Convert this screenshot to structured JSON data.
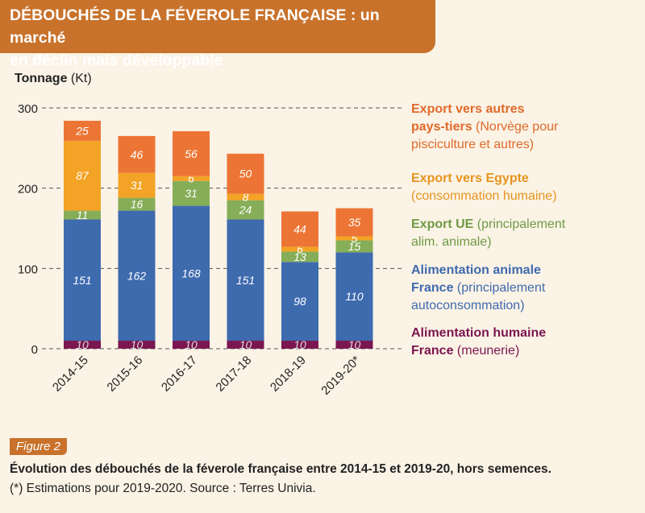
{
  "header": {
    "title_line1": "DÉBOUCHÉS DE LA FÉVEROLE FRANÇAISE : un marché",
    "title_line2": "en déclin mais développable"
  },
  "figure": {
    "tag": "Figure 2",
    "caption": "Évolution des débouchés de la féverole française entre 2014-15 et 2019-20, hors semences.",
    "note": "(*) Estimations pour 2019-2020. Source : Terres Univia."
  },
  "chart_data": {
    "type": "bar",
    "stacked": true,
    "ylabel_bold": "Tonnage",
    "ylabel_unit": " (Kt)",
    "ylim": [
      0,
      300
    ],
    "yticks": [
      "0",
      "100",
      "200",
      "300"
    ],
    "grid": "dashed horizontal",
    "legend_position": "right",
    "categories": [
      "2014-15",
      "2015-16",
      "2016-17",
      "2017-18",
      "2018-19",
      "2019-20*"
    ],
    "series": [
      {
        "key": "humaine",
        "color": "#7b1650",
        "label_color": "#dcdcdc",
        "values": [
          10,
          10,
          10,
          10,
          10,
          10
        ],
        "legend_bold": [
          "Alimentation humaine",
          "France"
        ],
        "legend_rest": [
          "",
          " (meunerie)"
        ]
      },
      {
        "key": "animale",
        "color": "#3e6aae",
        "label_color": "#ffffff",
        "values": [
          151,
          162,
          168,
          151,
          98,
          110
        ],
        "legend_bold": [
          "Alimentation animale",
          "France",
          ""
        ],
        "legend_rest": [
          "",
          " (principalement",
          "autoconsommation)"
        ]
      },
      {
        "key": "ue",
        "color": "#86ad57",
        "label_color": "#ffffff",
        "values": [
          11,
          16,
          31,
          24,
          13,
          15
        ],
        "legend_bold": [
          "Export UE",
          ""
        ],
        "legend_rest": [
          " (principalement",
          "alim. animale)"
        ]
      },
      {
        "key": "egypte",
        "color": "#f3a325",
        "label_color": "#ffffff",
        "values": [
          87,
          31,
          6,
          8,
          6,
          5
        ],
        "legend_bold": [
          "Export vers Egypte",
          ""
        ],
        "legend_rest": [
          "",
          "(consommation humaine)"
        ]
      },
      {
        "key": "pays",
        "color": "#ec7535",
        "label_color": "#ffffff",
        "values": [
          25,
          46,
          56,
          50,
          44,
          35
        ],
        "legend_bold": [
          "Export vers autres",
          "pays-tiers",
          ""
        ],
        "legend_rest": [
          "",
          " (Norvège pour",
          "pisciculture et autres)"
        ]
      }
    ],
    "legend_text_colors": {
      "humaine": "#7b1650",
      "animale": "#3e6aae",
      "ue": "#6f9a44",
      "egypte": "#e69520",
      "pays": "#e06a2a"
    }
  }
}
